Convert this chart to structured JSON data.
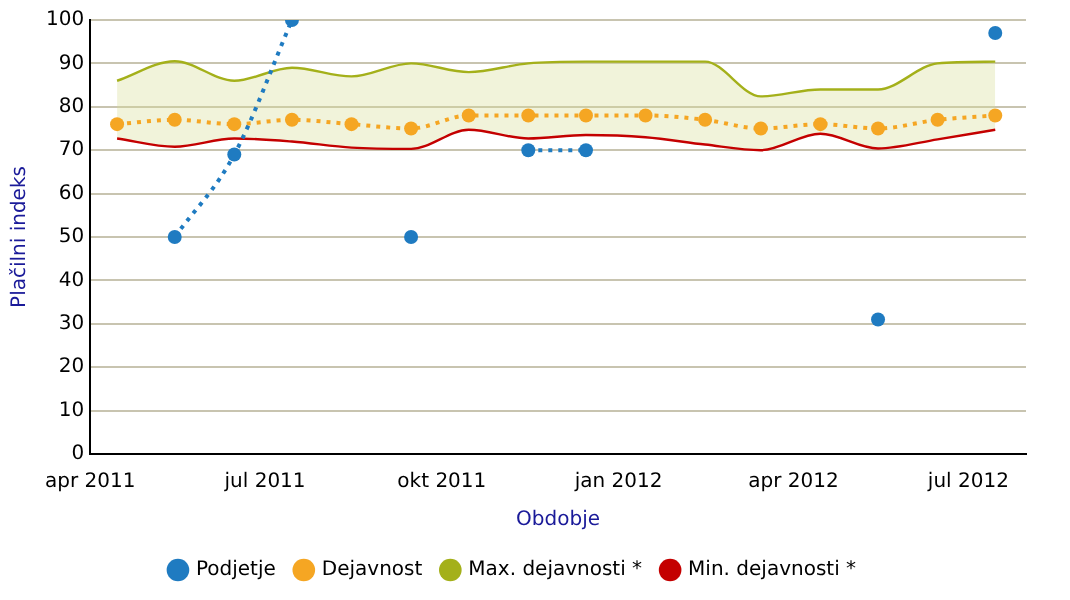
{
  "chart_data": {
    "type": "line",
    "xlabel": "Obdobje",
    "ylabel": "Plačilni indeks",
    "x": [
      "2011-04-15",
      "2011-05-15",
      "2011-06-15",
      "2011-07-15",
      "2011-08-15",
      "2011-09-15",
      "2011-10-15",
      "2011-11-15",
      "2011-12-15",
      "2012-01-15",
      "2012-02-15",
      "2012-03-15",
      "2012-04-15",
      "2012-05-15",
      "2012-06-15",
      "2012-07-15"
    ],
    "series": [
      {
        "name": "Podjetje",
        "color": "#1f7bc1",
        "marker": "circle",
        "line_style": "dotted",
        "values": [
          null,
          50,
          69,
          100,
          null,
          50,
          null,
          70,
          70,
          null,
          null,
          null,
          null,
          31,
          null,
          97
        ]
      },
      {
        "name": "Dejavnost",
        "color": "#f5a623",
        "marker": "circle",
        "line_style": "dotted",
        "values": [
          76,
          77,
          76,
          77,
          76,
          75,
          78,
          78,
          78,
          78,
          77,
          75,
          76,
          75,
          77,
          78
        ],
        "lower": [
          72.7,
          70.8,
          72.7,
          72,
          70.6,
          70.3,
          74.7,
          72.7,
          73.5,
          73,
          71.3,
          70,
          73.8,
          70.4,
          72.5,
          74.7
        ],
        "upper": [
          86,
          90.5,
          86,
          89,
          87,
          90,
          88,
          90,
          90.4,
          90.4,
          90.4,
          82.4,
          84,
          84,
          90,
          90.4
        ]
      },
      {
        "name": "Max. dejavnosti *",
        "color": "#a4b01a",
        "marker": "none",
        "line_style": "solid",
        "values": [
          86,
          90.5,
          86,
          89,
          87,
          90,
          88,
          90,
          90.4,
          90.4,
          90.4,
          82.4,
          84,
          84,
          90,
          90.4
        ]
      },
      {
        "name": "Min. dejavnosti *",
        "color": "#c40000",
        "marker": "none",
        "line_style": "solid",
        "values": [
          72.7,
          70.8,
          72.7,
          72,
          70.6,
          70.3,
          74.7,
          72.7,
          73.5,
          73,
          71.3,
          70,
          73.8,
          70.4,
          72.5,
          74.7
        ]
      }
    ],
    "xlim": [
      "2011-04-01",
      "2012-07-31"
    ],
    "xticks": [
      {
        "value": "2011-04-01",
        "label": "apr 2011"
      },
      {
        "value": "2011-07-01",
        "label": "jul 2011"
      },
      {
        "value": "2011-10-01",
        "label": "okt 2011"
      },
      {
        "value": "2012-01-01",
        "label": "jan 2012"
      },
      {
        "value": "2012-04-01",
        "label": "apr 2012"
      },
      {
        "value": "2012-07-01",
        "label": "jul 2012"
      }
    ],
    "ylim": [
      0,
      100
    ],
    "yticks": [
      0,
      10,
      20,
      30,
      40,
      50,
      60,
      70,
      80,
      90,
      100
    ],
    "grid": "y",
    "legend": "bottom"
  }
}
